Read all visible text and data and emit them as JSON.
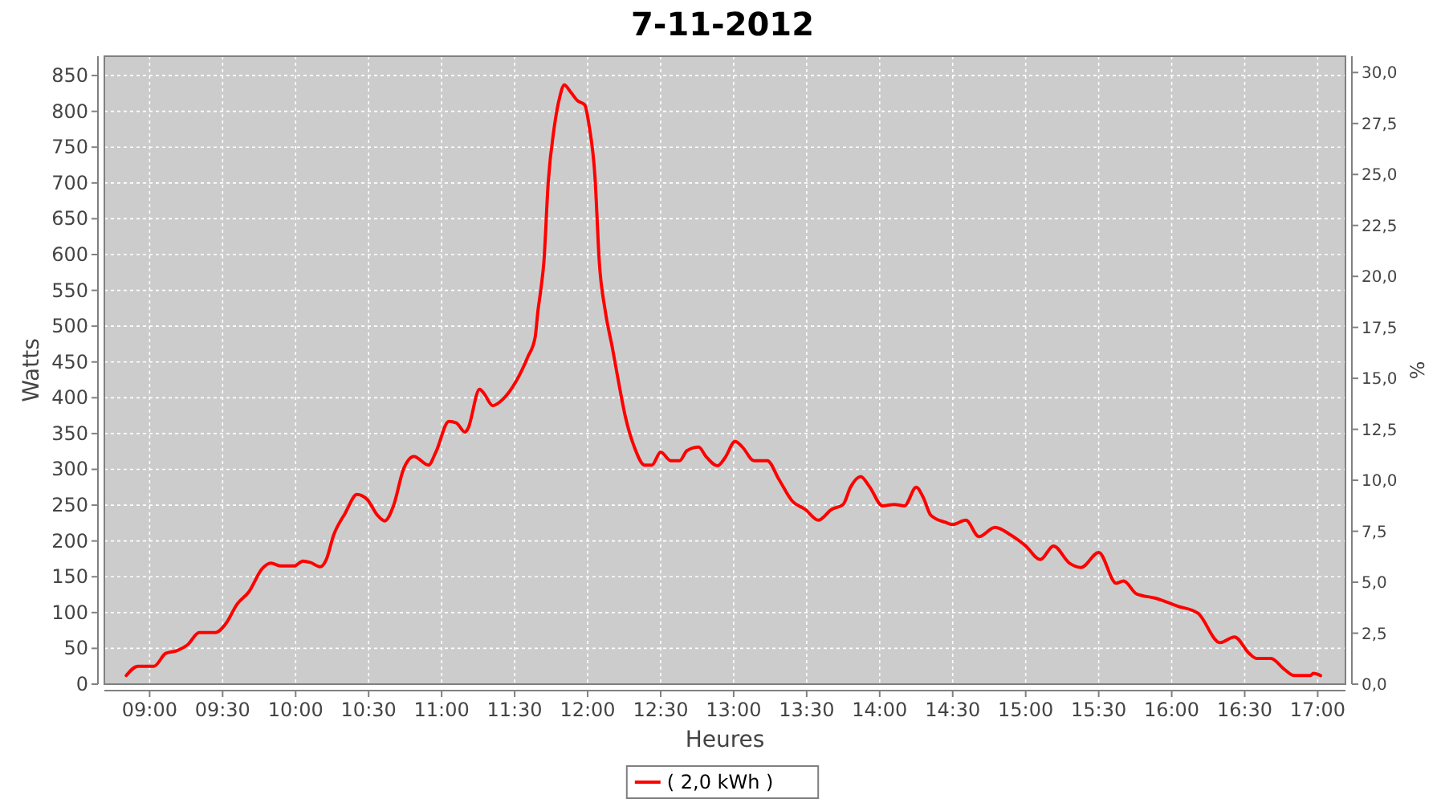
{
  "chart_data": {
    "type": "line",
    "title": "7-11-2012",
    "xlabel": "Heures",
    "ylabel": "Watts",
    "y2label": "%",
    "xlim": [
      8.69,
      17.19
    ],
    "xticks": [
      {
        "value": 9,
        "label": "09:00"
      },
      {
        "value": 9.5,
        "label": "09:30"
      },
      {
        "value": 10,
        "label": "10:00"
      },
      {
        "value": 10.5,
        "label": "10:30"
      },
      {
        "value": 11,
        "label": "11:00"
      },
      {
        "value": 11.5,
        "label": "11:30"
      },
      {
        "value": 12,
        "label": "12:00"
      },
      {
        "value": 12.5,
        "label": "12:30"
      },
      {
        "value": 13,
        "label": "13:00"
      },
      {
        "value": 13.5,
        "label": "13:30"
      },
      {
        "value": 14,
        "label": "14:00"
      },
      {
        "value": 14.5,
        "label": "14:30"
      },
      {
        "value": 15,
        "label": "15:00"
      },
      {
        "value": 15.5,
        "label": "15:30"
      },
      {
        "value": 16,
        "label": "16:00"
      },
      {
        "value": 16.5,
        "label": "16:30"
      },
      {
        "value": 17,
        "label": "17:00"
      }
    ],
    "ylim": [
      0,
      877
    ],
    "yticks": [
      0,
      50,
      100,
      150,
      200,
      250,
      300,
      350,
      400,
      450,
      500,
      550,
      600,
      650,
      700,
      750,
      800,
      850
    ],
    "y2lim": [
      0,
      30.8
    ],
    "y2ticks": [
      {
        "value": 0,
        "label": "0,0"
      },
      {
        "value": 2.5,
        "label": "2,5"
      },
      {
        "value": 5,
        "label": "5,0"
      },
      {
        "value": 7.5,
        "label": "7,5"
      },
      {
        "value": 10,
        "label": "10,0"
      },
      {
        "value": 12.5,
        "label": "12,5"
      },
      {
        "value": 15,
        "label": "15,0"
      },
      {
        "value": 17.5,
        "label": "17,5"
      },
      {
        "value": 20,
        "label": "20,0"
      },
      {
        "value": 22.5,
        "label": "22,5"
      },
      {
        "value": 25,
        "label": "25,0"
      },
      {
        "value": 27.5,
        "label": "27,5"
      },
      {
        "value": 30,
        "label": "30,0"
      }
    ],
    "grid": true,
    "legend": "bottom",
    "line_style": "solid",
    "marker": "none",
    "series": [
      {
        "name": "( 2,0 kWh )",
        "color": "#ff0000",
        "x": [
          8.84,
          8.92,
          9.03,
          9.11,
          9.19,
          9.26,
          9.34,
          9.45,
          9.52,
          9.6,
          9.68,
          9.77,
          9.83,
          9.9,
          9.99,
          10.05,
          10.1,
          10.17,
          10.21,
          10.26,
          10.34,
          10.42,
          10.49,
          10.56,
          10.61,
          10.67,
          10.74,
          10.81,
          10.91,
          10.96,
          11.05,
          11.1,
          11.16,
          11.18,
          11.26,
          11.29,
          11.35,
          11.42,
          11.51,
          11.59,
          11.64,
          11.66,
          11.68,
          11.7,
          11.73,
          11.77,
          11.81,
          11.84,
          11.88,
          11.93,
          11.98,
          12.01,
          12.05,
          12.08,
          12.12,
          12.17,
          12.21,
          12.26,
          12.32,
          12.39,
          12.44,
          12.5,
          12.57,
          12.63,
          12.68,
          12.76,
          12.81,
          12.89,
          12.94,
          13.01,
          13.06,
          13.14,
          13.23,
          13.31,
          13.4,
          13.49,
          13.58,
          13.67,
          13.75,
          13.8,
          13.87,
          13.93,
          14.02,
          14.1,
          14.17,
          14.25,
          14.3,
          14.35,
          14.45,
          14.5,
          14.59,
          14.68,
          14.79,
          14.9,
          15,
          15.1,
          15.19,
          15.3,
          15.38,
          15.5,
          15.62,
          15.67,
          15.76,
          15.89,
          16.04,
          16.18,
          16.33,
          16.43,
          16.53,
          16.58,
          16.68,
          16.77,
          16.84,
          16.95,
          16.97,
          17.02
        ],
        "values": [
          12,
          25,
          25,
          43,
          47,
          55,
          72,
          72,
          84,
          112,
          129,
          161,
          169,
          165,
          165,
          172,
          170,
          164,
          174,
          208,
          239,
          265,
          258,
          236,
          228,
          249,
          301,
          318,
          306,
          324,
          367,
          365,
          352,
          357,
          412,
          406,
          389,
          398,
          423,
          457,
          484,
          522,
          552,
          589,
          701,
          776,
          821,
          837,
          828,
          815,
          809,
          780,
          709,
          589,
          522,
          469,
          424,
          372,
          331,
          306,
          306,
          324,
          312,
          312,
          326,
          331,
          318,
          305,
          316,
          339,
          331,
          312,
          312,
          286,
          256,
          244,
          229,
          244,
          251,
          275,
          290,
          276,
          249,
          251,
          249,
          275,
          260,
          236,
          226,
          223,
          229,
          206,
          219,
          208,
          193,
          174,
          193,
          169,
          163,
          184,
          141,
          144,
          126,
          120,
          109,
          99,
          58,
          66,
          43,
          36,
          36,
          21,
          12,
          12,
          15,
          12
        ]
      }
    ]
  }
}
